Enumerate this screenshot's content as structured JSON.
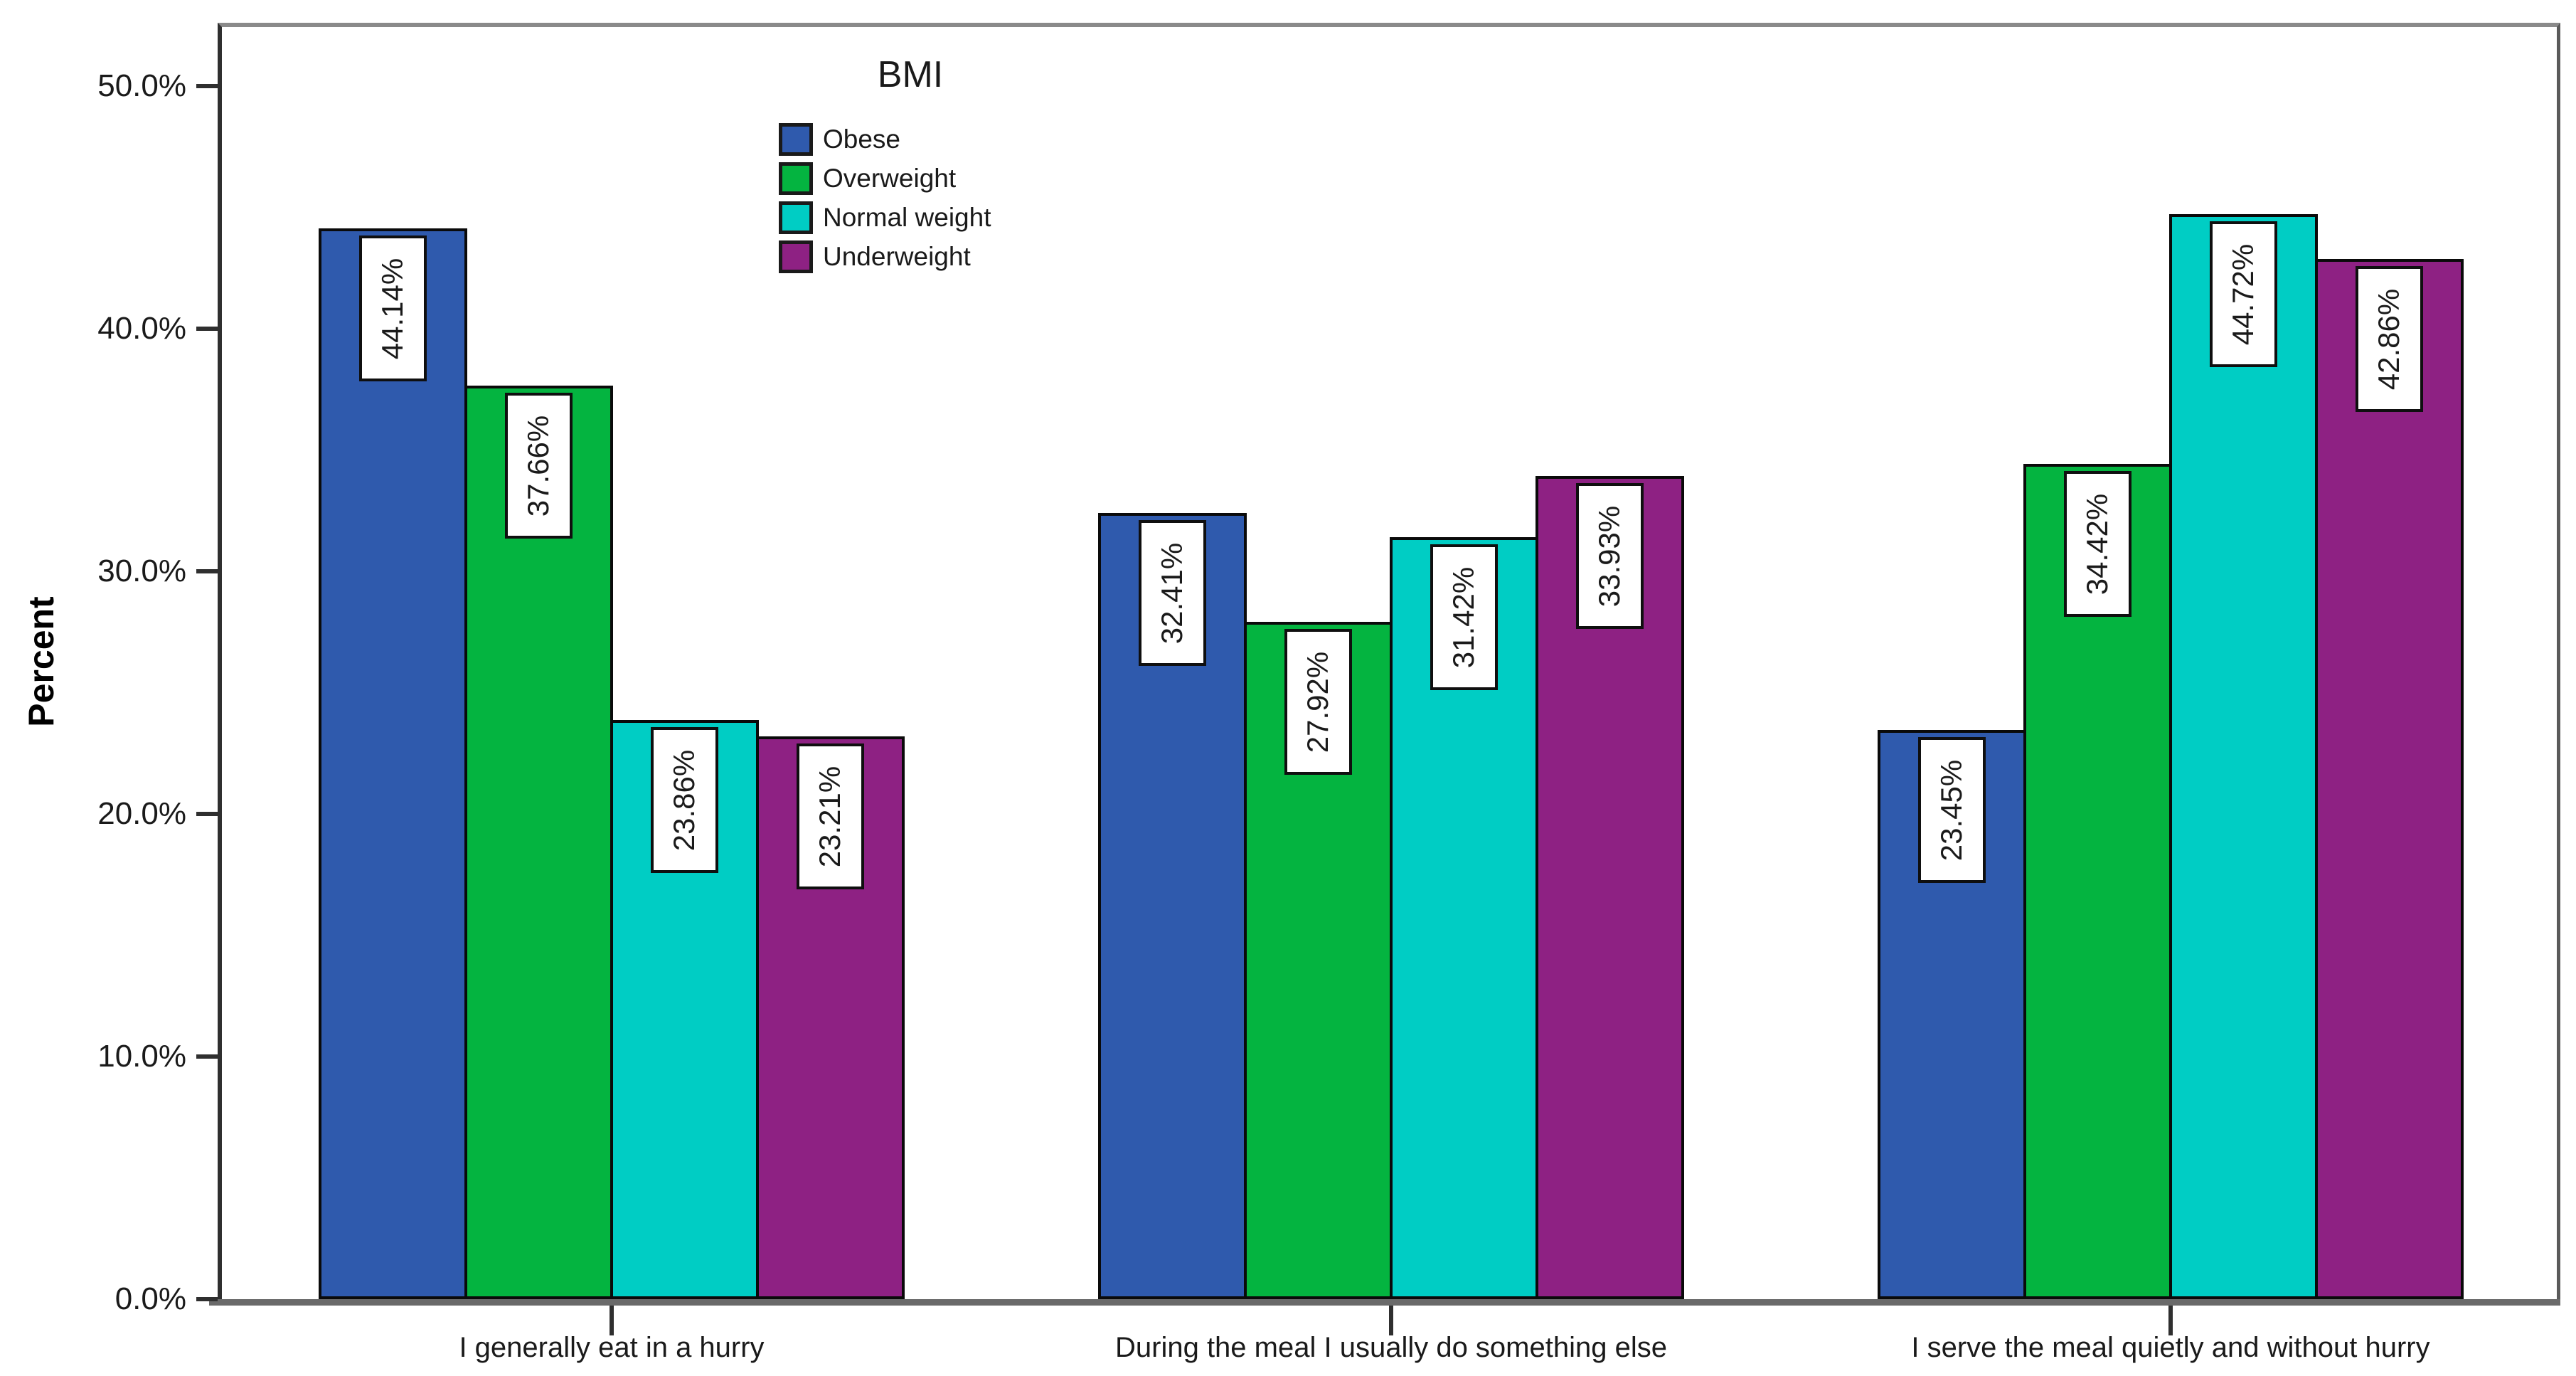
{
  "chart_data": {
    "type": "bar",
    "title": "",
    "legend_title": "BMI",
    "legend_position": "top-center-inside",
    "xlabel": "",
    "ylabel": "Percent",
    "ylim": [
      0,
      52.5
    ],
    "grid": false,
    "bar_value_labels_rotated": true,
    "y_ticks": [
      {
        "label": "50.0%",
        "value": 50
      },
      {
        "label": "40.0%",
        "value": 40
      },
      {
        "label": "30.0%",
        "value": 30
      },
      {
        "label": "20.0%",
        "value": 20
      },
      {
        "label": "10.0%",
        "value": 10
      },
      {
        "label": "0.0%",
        "value": 0
      }
    ],
    "categories": [
      "I generally eat in a hurry",
      "During the meal I usually do something else",
      "I serve the meal quietly and without hurry"
    ],
    "series": [
      {
        "name": "Obese",
        "color": "#2F5AAD",
        "values": [
          44.14,
          32.41,
          23.45
        ],
        "value_labels": [
          "44.14%",
          "32.41%",
          "23.45%"
        ]
      },
      {
        "name": "Overweight",
        "color": "#04B440",
        "values": [
          37.66,
          27.92,
          34.42
        ],
        "value_labels": [
          "37.66%",
          "27.92%",
          "34.42%"
        ]
      },
      {
        "name": "Normal weight",
        "color": "#00CDC4",
        "values": [
          23.86,
          31.42,
          44.72
        ],
        "value_labels": [
          "23.86%",
          "31.42%",
          "44.72%"
        ]
      },
      {
        "name": "Underweight",
        "color": "#8E2183",
        "values": [
          23.21,
          33.93,
          42.86
        ],
        "value_labels": [
          "23.21%",
          "33.93%",
          "42.86%"
        ]
      }
    ]
  }
}
